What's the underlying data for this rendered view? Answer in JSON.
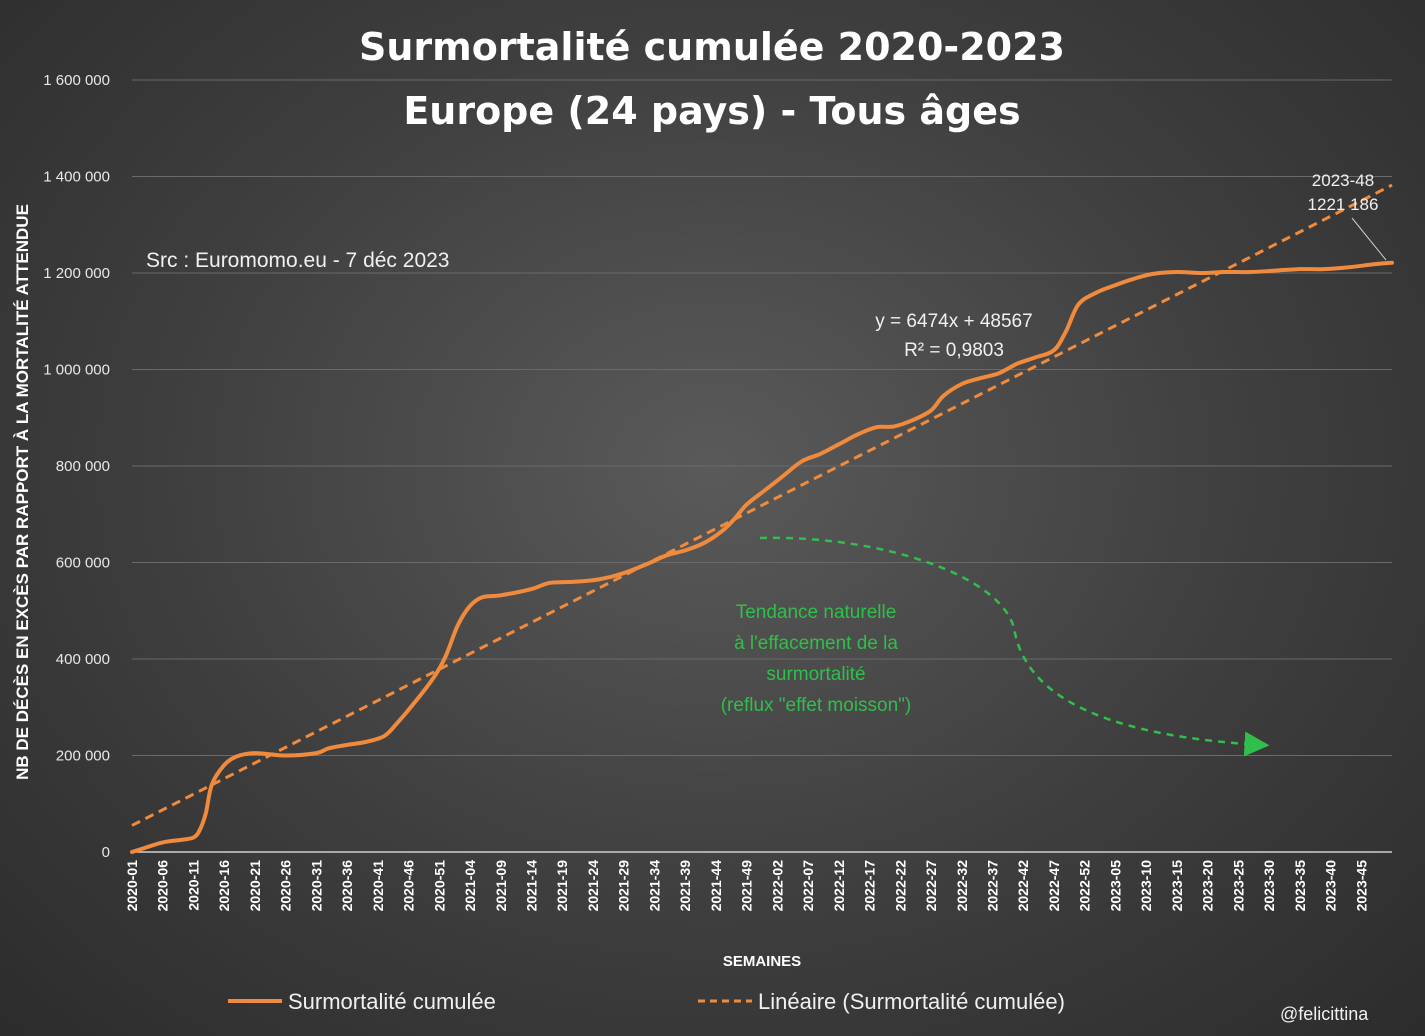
{
  "chart_data": {
    "type": "line",
    "title": "Surmortalité cumulée 2020-2023",
    "subtitle": "Europe (24 pays) - Tous âges",
    "xlabel": "SEMAINES",
    "ylabel": "NB DE DÉCÈS EN EXCÈS PAR RAPPORT À LA MORTALITÉ ATTENDUE",
    "ylim": [
      0,
      1600000
    ],
    "grid": true,
    "legend_position": "bottom",
    "y_tick_values": [
      0,
      200000,
      400000,
      600000,
      800000,
      1000000,
      1200000,
      1400000,
      1600000
    ],
    "y_tick_labels": [
      "0",
      "200 000",
      "400 000",
      "600 000",
      "800 000",
      "1 000 000",
      "1 200 000",
      "1 400 000",
      "1 600 000"
    ],
    "x_tick_labels": [
      "2020-01",
      "2020-06",
      "2020-11",
      "2020-16",
      "2020-21",
      "2020-26",
      "2020-31",
      "2020-36",
      "2020-41",
      "2020-46",
      "2020-51",
      "2021-04",
      "2021-09",
      "2021-14",
      "2021-19",
      "2021-24",
      "2021-29",
      "2021-34",
      "2021-39",
      "2021-44",
      "2021-49",
      "2022-02",
      "2022-07",
      "2022-12",
      "2022-17",
      "2022-22",
      "2022-27",
      "2022-32",
      "2022-37",
      "2022-42",
      "2022-47",
      "2022-52",
      "2023-05",
      "2023-10",
      "2023-15",
      "2023-20",
      "2023-25",
      "2023-30",
      "2023-35",
      "2023-40",
      "2023-45"
    ],
    "x_tick_index": [
      0,
      5,
      10,
      15,
      20,
      25,
      30,
      35,
      40,
      45,
      50,
      55,
      60,
      65,
      70,
      75,
      80,
      85,
      90,
      95,
      100,
      105,
      110,
      115,
      120,
      125,
      130,
      135,
      140,
      145,
      150,
      155,
      160,
      165,
      170,
      175,
      180,
      185,
      190,
      195,
      200
    ],
    "x_count": 206,
    "series": [
      {
        "name": "Surmortalité cumulée",
        "color": "#f08a3c",
        "style": "solid",
        "points": [
          [
            0,
            0
          ],
          [
            2,
            8000
          ],
          [
            5,
            20000
          ],
          [
            8,
            25000
          ],
          [
            10,
            30000
          ],
          [
            11,
            45000
          ],
          [
            12,
            80000
          ],
          [
            13,
            140000
          ],
          [
            15,
            180000
          ],
          [
            17,
            198000
          ],
          [
            20,
            205000
          ],
          [
            25,
            200000
          ],
          [
            30,
            205000
          ],
          [
            32,
            215000
          ],
          [
            35,
            222000
          ],
          [
            38,
            228000
          ],
          [
            41,
            240000
          ],
          [
            43,
            265000
          ],
          [
            46,
            310000
          ],
          [
            49,
            360000
          ],
          [
            51,
            405000
          ],
          [
            53,
            470000
          ],
          [
            55,
            510000
          ],
          [
            57,
            528000
          ],
          [
            60,
            532000
          ],
          [
            65,
            545000
          ],
          [
            68,
            558000
          ],
          [
            72,
            560000
          ],
          [
            76,
            565000
          ],
          [
            80,
            578000
          ],
          [
            84,
            598000
          ],
          [
            87,
            615000
          ],
          [
            90,
            625000
          ],
          [
            93,
            640000
          ],
          [
            96,
            665000
          ],
          [
            98,
            690000
          ],
          [
            100,
            720000
          ],
          [
            103,
            750000
          ],
          [
            106,
            780000
          ],
          [
            109,
            810000
          ],
          [
            112,
            825000
          ],
          [
            115,
            845000
          ],
          [
            118,
            865000
          ],
          [
            121,
            880000
          ],
          [
            124,
            882000
          ],
          [
            127,
            895000
          ],
          [
            130,
            915000
          ],
          [
            132,
            945000
          ],
          [
            135,
            970000
          ],
          [
            138,
            982000
          ],
          [
            141,
            992000
          ],
          [
            144,
            1012000
          ],
          [
            147,
            1025000
          ],
          [
            150,
            1040000
          ],
          [
            152,
            1080000
          ],
          [
            154,
            1135000
          ],
          [
            157,
            1160000
          ],
          [
            160,
            1175000
          ],
          [
            163,
            1188000
          ],
          [
            166,
            1198000
          ],
          [
            170,
            1202000
          ],
          [
            174,
            1200000
          ],
          [
            178,
            1202000
          ],
          [
            182,
            1202000
          ],
          [
            186,
            1205000
          ],
          [
            190,
            1208000
          ],
          [
            194,
            1208000
          ],
          [
            198,
            1212000
          ],
          [
            202,
            1218000
          ],
          [
            205,
            1221186
          ]
        ]
      },
      {
        "name": "Linéaire (Surmortalité cumulée)",
        "color": "#f08a3c",
        "style": "dashed",
        "slope": 6474,
        "intercept": 48567,
        "x_start": 1,
        "x_end": 206
      }
    ],
    "annotations": {
      "source": "Src : Euromomo.eu  - 7 déc 2023",
      "equation": "y = 6474x + 48567",
      "r_squared": "R² = 0,9803",
      "last_week": "2023-48",
      "last_value": "1221 186",
      "green_note": [
        "Tendance naturelle",
        "à l'effacement de la",
        "surmortalité",
        "(reflux \"effet moisson\")"
      ],
      "green_color": "#2fbf4a"
    }
  },
  "watermark": "@felicittina"
}
